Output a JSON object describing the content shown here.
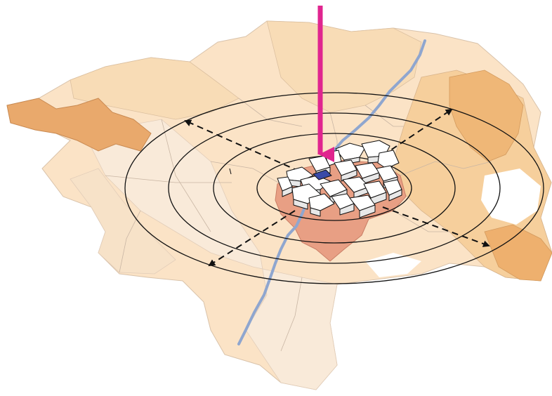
{
  "map": {
    "view": "oblique-3d",
    "ring_count": 4,
    "axis_count": 4,
    "colors": {
      "background": "#ffffff",
      "region_outer": "#fbe3c6",
      "region_light": "#f9ead9",
      "region_mid": "#f6cf9c",
      "region_dark": "#e9a96c",
      "urban_core": "#e89f84",
      "river": "#8fa6cf",
      "border": "#c9b6a4",
      "rings": "#111111",
      "axes": "#111111",
      "marker": "#e0258f",
      "highlight_building": "#3a4aa8",
      "buildings": "#ffffff"
    },
    "icons": {
      "marker": "down-arrow-icon",
      "highlight": "selected-building-icon"
    }
  }
}
